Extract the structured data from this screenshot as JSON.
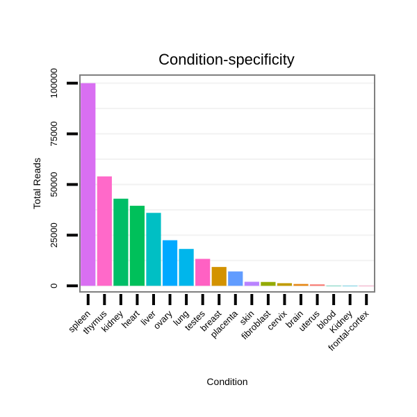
{
  "chart_data": {
    "type": "bar",
    "title": "Condition-specificity",
    "xlabel": "Condition",
    "ylabel": "Total Reads",
    "ylim": [
      -3000,
      104000
    ],
    "yticks": [
      0,
      25000,
      50000,
      75000,
      100000
    ],
    "ytick_labels": [
      "0",
      "25000",
      "50000",
      "75000",
      "100000"
    ],
    "grid": true,
    "legend": "none",
    "categories": [
      "spleen",
      "thymus",
      "kidney",
      "heart",
      "liver",
      "ovary",
      "lung",
      "testes",
      "breast",
      "placenta",
      "skin",
      "fibroblast",
      "cervix",
      "brain",
      "uterus",
      "blood",
      "Kidney",
      "frontal-cortex"
    ],
    "values": [
      100000,
      54000,
      43000,
      39500,
      36000,
      22500,
      18200,
      13300,
      9300,
      7100,
      2000,
      1900,
      1300,
      900,
      700,
      100,
      50,
      50
    ],
    "colors": [
      "#d96ff2",
      "#ff69c9",
      "#00be67",
      "#00c05a",
      "#00bfc4",
      "#00a9ff",
      "#00b6eb",
      "#ff61c3",
      "#d39200",
      "#619cff",
      "#b983ff",
      "#93aa00",
      "#c09b00",
      "#e68613",
      "#f8766d",
      "#00c19a",
      "#00bae0",
      "#ff67a4"
    ]
  }
}
